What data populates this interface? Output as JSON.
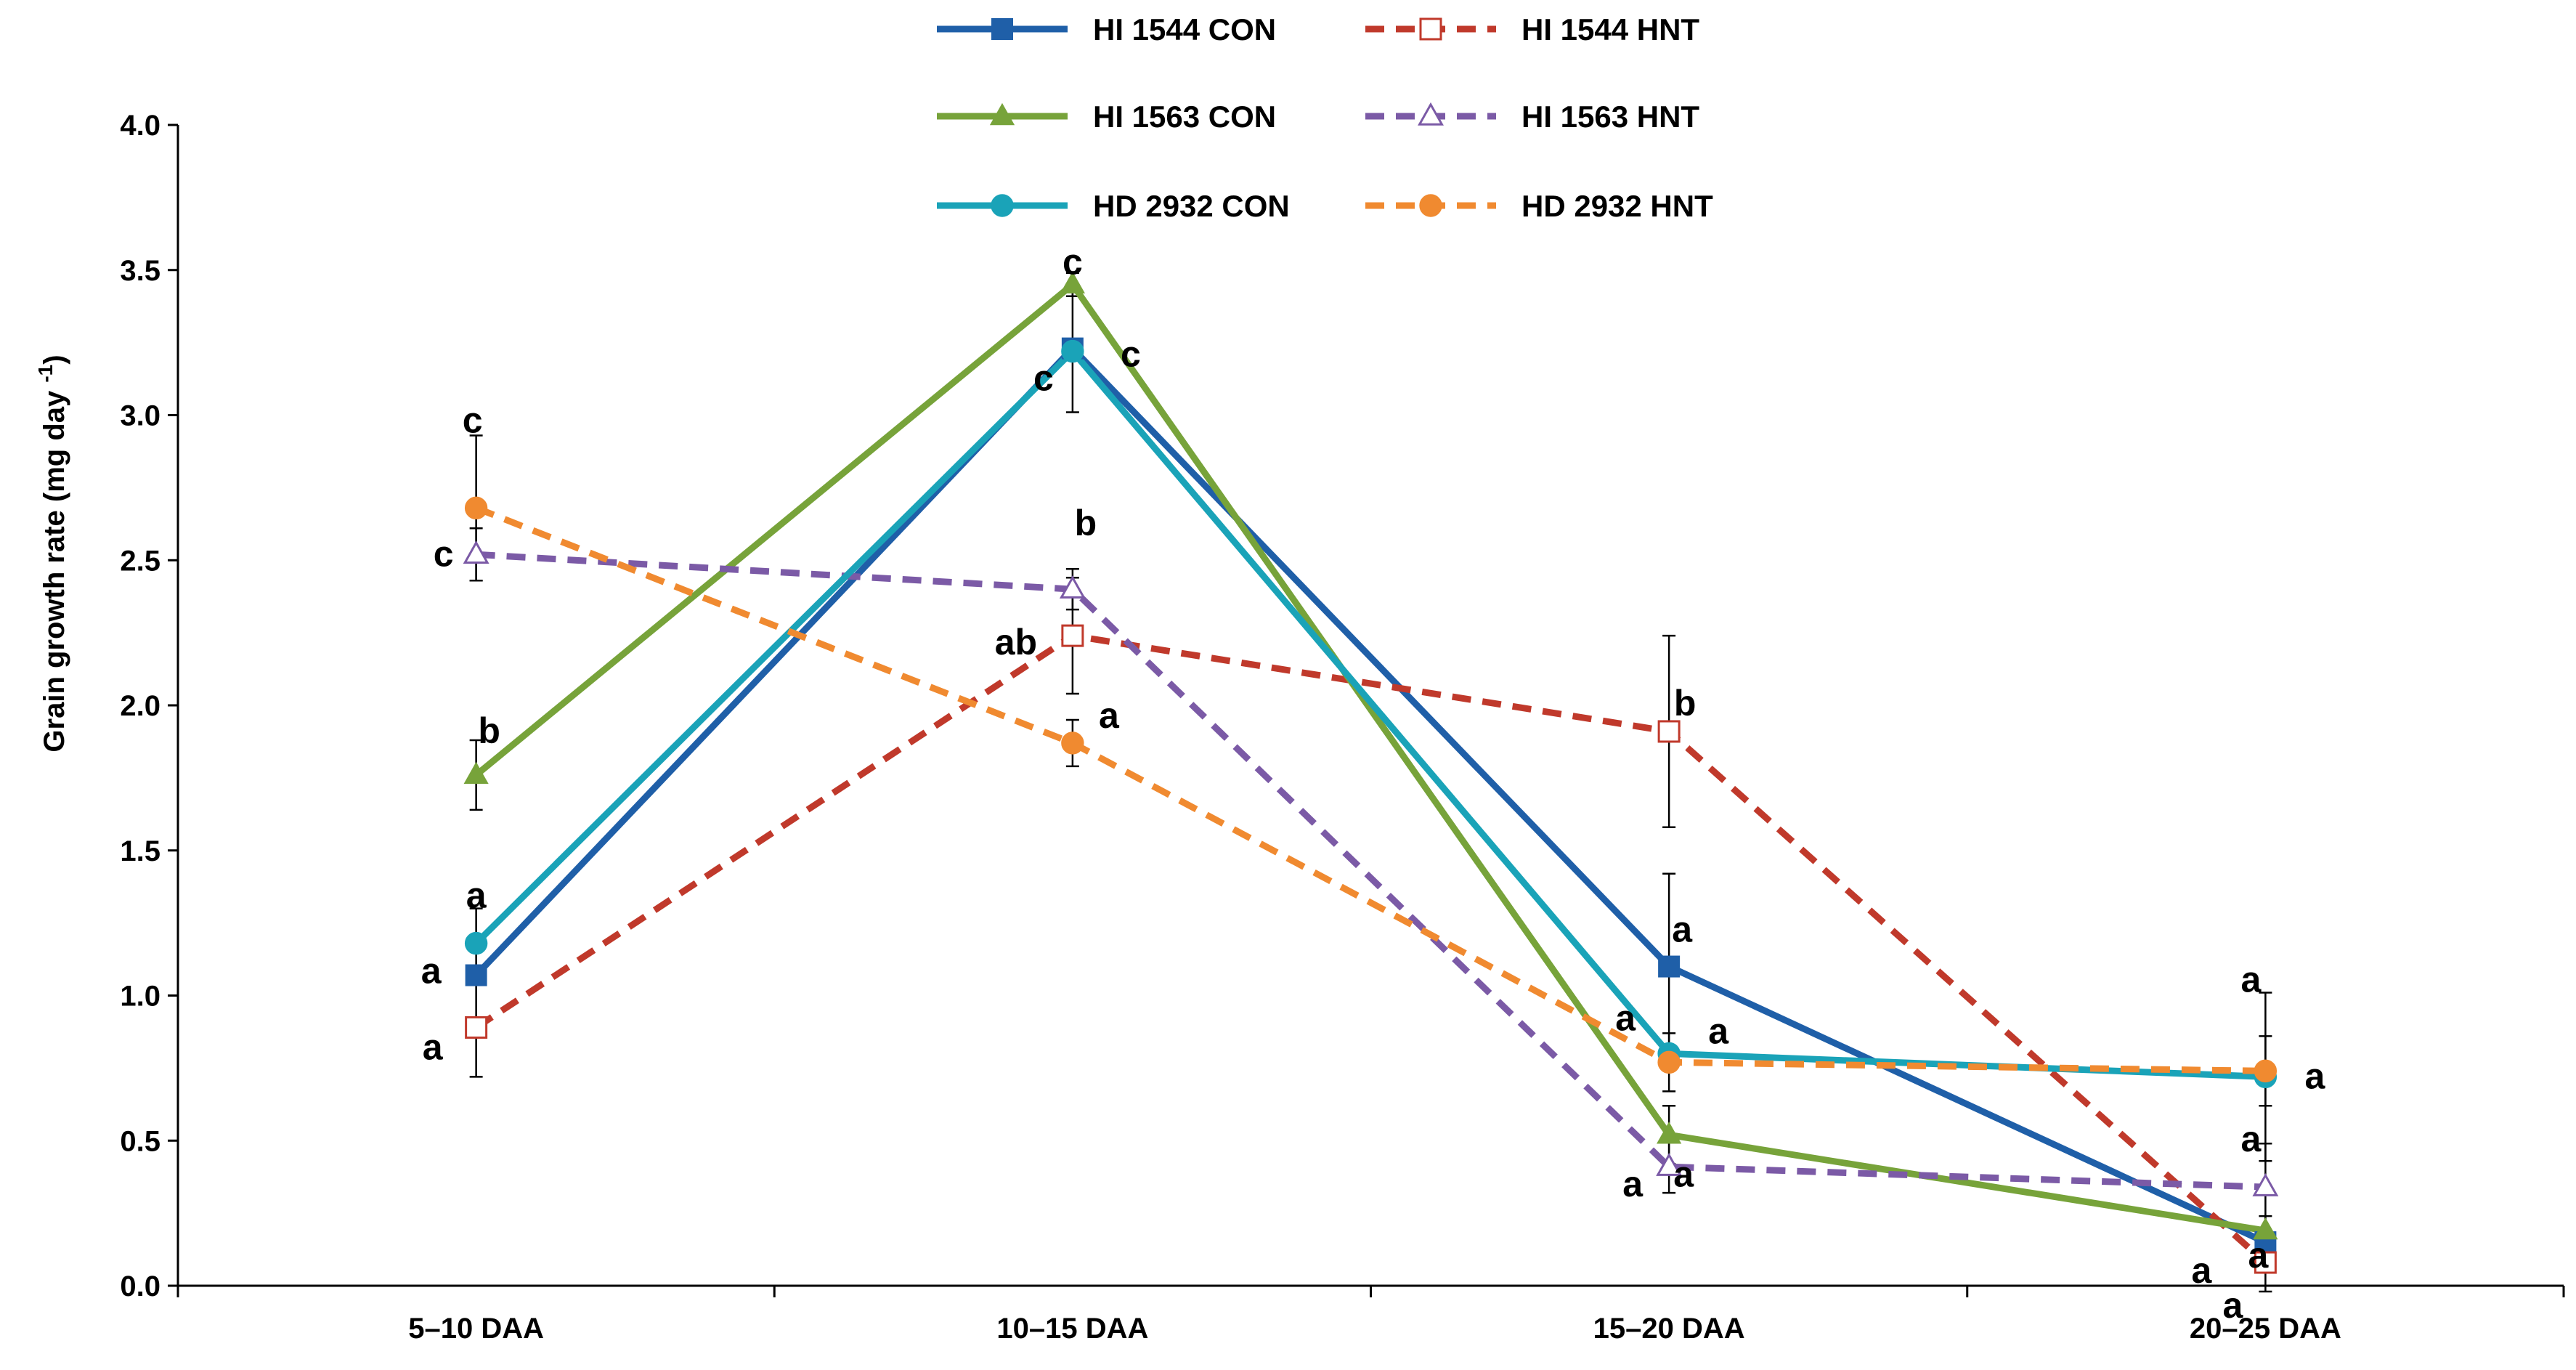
{
  "chart_data": {
    "type": "line",
    "title": "",
    "xlabel": "",
    "ylabel": "Grain growth rate (mg day -1)",
    "ylabel_parts": {
      "main": "Grain growth rate (mg day ",
      "sup": "-1",
      "close": ")"
    },
    "categories": [
      "5–10  DAA",
      "10–15 DAA",
      "15–20 DAA",
      "20–25 DAA"
    ],
    "ylim": [
      0,
      4
    ],
    "yticks": [
      "0.0",
      "0.5",
      "1.0",
      "1.5",
      "2.0",
      "2.5",
      "3.0",
      "3.5",
      "4.0"
    ],
    "grid": false,
    "legend_position": "top",
    "series": [
      {
        "name": "HI 1544 CON",
        "color": "#1f5fa8",
        "dash": false,
        "marker": "square",
        "filled": true,
        "values": [
          1.07,
          3.23,
          1.1,
          0.15
        ],
        "errors": [
          0.0,
          0.22,
          0.32,
          0.0
        ],
        "labels": [
          "a",
          "c",
          "a",
          "a"
        ]
      },
      {
        "name": "HI 1544 HNT",
        "color": "#c0392b",
        "dash": true,
        "marker": "square",
        "filled": false,
        "values": [
          0.89,
          2.24,
          1.91,
          0.08
        ],
        "errors": [
          0.17,
          0.2,
          0.33,
          0.1
        ],
        "labels": [
          "a",
          "ab",
          "b",
          "a"
        ]
      },
      {
        "name": "HI 1563 CON",
        "color": "#77a33a",
        "dash": false,
        "marker": "triangle",
        "filled": true,
        "values": [
          1.76,
          3.45,
          0.52,
          0.19
        ],
        "errors": [
          0.12,
          0.04,
          0.1,
          0.05
        ],
        "labels": [
          "b",
          "c",
          "a",
          "a"
        ]
      },
      {
        "name": "HI 1563 HNT",
        "color": "#7b5aa6",
        "dash": true,
        "marker": "triangle",
        "filled": false,
        "values": [
          2.52,
          2.4,
          0.41,
          0.34
        ],
        "errors": [
          0.09,
          0.07,
          0.09,
          0.15
        ],
        "labels": [
          "c",
          "b",
          "a",
          "a"
        ]
      },
      {
        "name": "HD 2932 CON",
        "color": "#1aa3b8",
        "dash": false,
        "marker": "circle",
        "filled": true,
        "values": [
          1.18,
          3.22,
          0.8,
          0.72
        ],
        "errors": [
          0.12,
          0.0,
          0.0,
          0.29
        ],
        "labels": [
          "a",
          "c",
          "a",
          "a"
        ]
      },
      {
        "name": "HD 2932 HNT",
        "color": "#f08a30",
        "dash": true,
        "marker": "circle",
        "filled": true,
        "values": [
          2.68,
          1.87,
          0.77,
          0.74
        ],
        "errors": [
          0.25,
          0.08,
          0.1,
          0.12
        ],
        "labels": [
          "c",
          "a",
          "a",
          "a"
        ]
      }
    ]
  }
}
